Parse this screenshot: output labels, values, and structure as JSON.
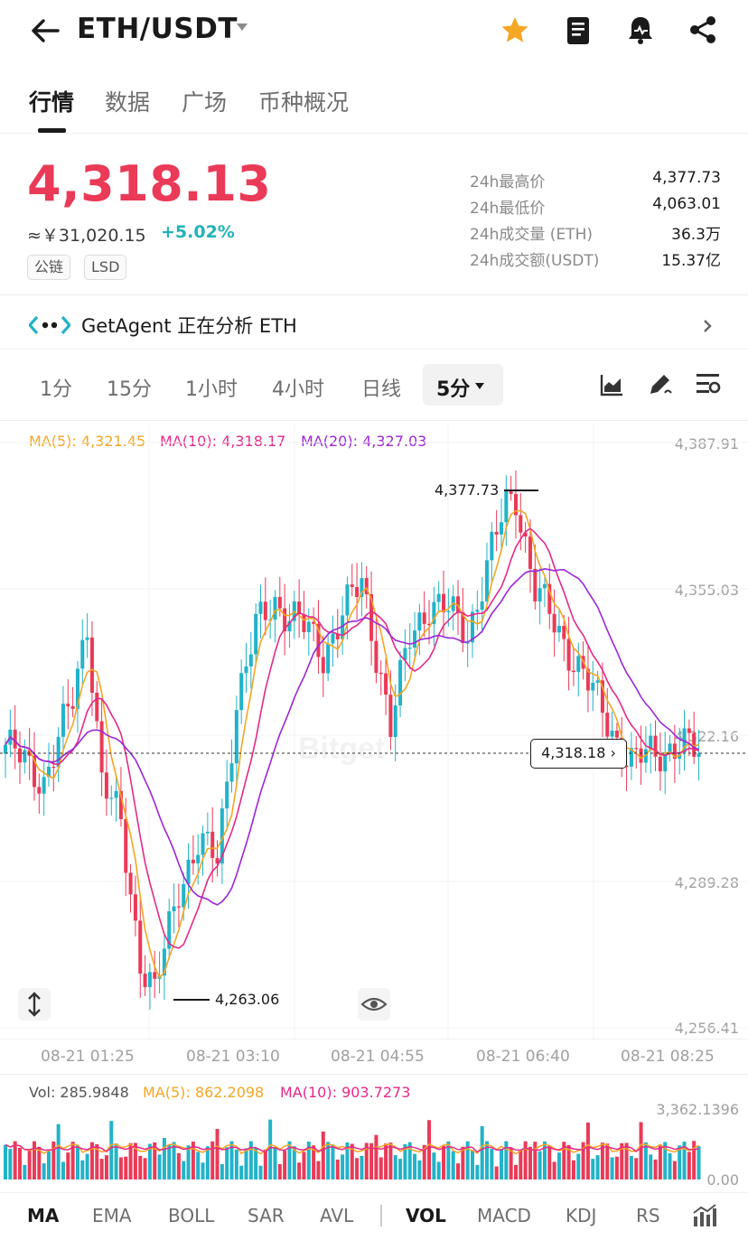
{
  "header": {
    "pair": "ETH/USDT",
    "icons": [
      "back-arrow-icon",
      "star-icon",
      "notebook-icon",
      "alert-bell-icon",
      "share-icon"
    ]
  },
  "tabs": [
    {
      "label": "行情",
      "active": true
    },
    {
      "label": "数据",
      "active": false
    },
    {
      "label": "广场",
      "active": false
    },
    {
      "label": "币种概况",
      "active": false
    }
  ],
  "ticker": {
    "price": "4,318.13",
    "cny": "≈￥31,020.15",
    "change": "+5.02%",
    "tags": [
      "公链",
      "LSD"
    ],
    "stats": [
      {
        "label": "24h最高价",
        "value": "4,377.73"
      },
      {
        "label": "24h最低价",
        "value": "4,063.01"
      },
      {
        "label": "24h成交量 (ETH)",
        "value": "36.3万"
      },
      {
        "label": "24h成交额(USDT)",
        "value": "15.37亿"
      }
    ]
  },
  "agent": {
    "text": "GetAgent 正在分析 ETH"
  },
  "intervals": {
    "items": [
      "1分",
      "15分",
      "1小时",
      "4小时",
      "日线"
    ],
    "selected": "5分"
  },
  "chart": {
    "ma5": "MA(5): 4,321.45",
    "ma10": "MA(10): 4,318.17",
    "ma20": "MA(20): 4,327.03",
    "y_ticks": [
      "4,387.91",
      "4,355.03",
      "4,322.16",
      "4,289.28",
      "4,256.41"
    ],
    "high_label": "4,377.73",
    "low_label": "4,263.06",
    "current_tag": "4,318.18 ›",
    "watermark": "Bitget",
    "x_ticks": [
      "08-21 01:25",
      "08-21 03:10",
      "08-21 04:55",
      "08-21 06:40",
      "08-21 08:25"
    ],
    "colors": {
      "up": "#22b3c9",
      "down": "#ea3a57",
      "ma5": "#f5a623",
      "ma10": "#e5298a",
      "ma20": "#9b27d8"
    }
  },
  "volume": {
    "vol": "Vol: 285.9848",
    "ma5": "MA(5): 862.2098",
    "ma10": "MA(10): 903.7273",
    "y_ticks": [
      "3,362.1396",
      "0.00"
    ]
  },
  "indicators": {
    "main": [
      "MA",
      "EMA",
      "BOLL",
      "SAR",
      "AVL"
    ],
    "sub": [
      "VOL",
      "MACD",
      "KDJ",
      "RS"
    ]
  },
  "chart_data": {
    "type": "candlestick",
    "x_labels": [
      "08-21 01:25",
      "08-21 03:10",
      "08-21 04:55",
      "08-21 06:40",
      "08-21 08:25"
    ],
    "ylim": [
      4256.41,
      4387.91
    ],
    "period_high": 4377.73,
    "period_low": 4263.06,
    "last": 4318.18,
    "ma_last": {
      "MA5": 4321.45,
      "MA10": 4318.17,
      "MA20": 4327.03
    },
    "volume": {
      "last": 285.9848,
      "MA5": 862.2098,
      "MA10": 903.7273,
      "ymax": 3362.1396
    }
  }
}
